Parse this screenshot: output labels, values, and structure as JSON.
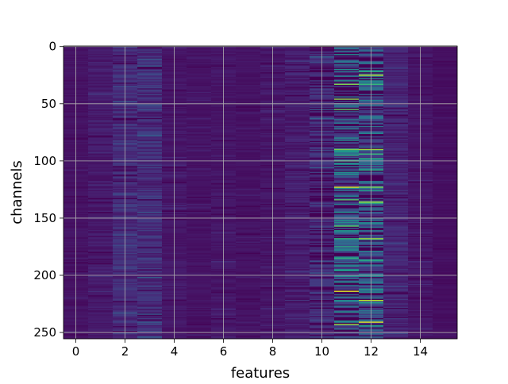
{
  "chart_data": {
    "type": "heatmap",
    "title": "",
    "xlabel": "features",
    "ylabel": "channels",
    "xlim": [
      -0.5,
      15.5
    ],
    "ylim": [
      255.5,
      -0.5
    ],
    "y_inverted": true,
    "n_features": 16,
    "n_channels": 256,
    "xticks": [
      0,
      2,
      4,
      6,
      8,
      10,
      12,
      14
    ],
    "yticks": [
      0,
      50,
      100,
      150,
      200,
      250
    ],
    "grid": true,
    "colormap": "viridis",
    "value_range": [
      0,
      1
    ],
    "background_value": 0.04,
    "feature_column_means": [
      0.05,
      0.07,
      0.12,
      0.13,
      0.06,
      0.05,
      0.06,
      0.05,
      0.06,
      0.08,
      0.12,
      0.3,
      0.28,
      0.1,
      0.06,
      0.04
    ],
    "feature_column_variability": [
      0.03,
      0.05,
      0.1,
      0.12,
      0.04,
      0.03,
      0.04,
      0.03,
      0.04,
      0.06,
      0.12,
      0.35,
      0.3,
      0.08,
      0.04,
      0.02
    ],
    "highlighted_cells": [
      {
        "feature": 11,
        "channel": 55,
        "value": 0.75
      },
      {
        "feature": 11,
        "channel": 90,
        "value": 0.8
      },
      {
        "feature": 11,
        "channel": 92,
        "value": 0.55
      },
      {
        "feature": 11,
        "channel": 123,
        "value": 0.95
      },
      {
        "feature": 11,
        "channel": 145,
        "value": 0.5
      },
      {
        "feature": 11,
        "channel": 175,
        "value": 0.6
      },
      {
        "feature": 11,
        "channel": 192,
        "value": 0.5
      },
      {
        "feature": 11,
        "channel": 214,
        "value": 0.95
      },
      {
        "feature": 12,
        "channel": 25,
        "value": 0.9
      },
      {
        "feature": 12,
        "channel": 90,
        "value": 0.85
      },
      {
        "feature": 12,
        "channel": 98,
        "value": 0.6
      },
      {
        "feature": 12,
        "channel": 108,
        "value": 0.6
      },
      {
        "feature": 12,
        "channel": 123,
        "value": 0.8
      },
      {
        "feature": 12,
        "channel": 136,
        "value": 0.85
      },
      {
        "feature": 12,
        "channel": 168,
        "value": 0.85
      },
      {
        "feature": 12,
        "channel": 187,
        "value": 0.6
      },
      {
        "feature": 12,
        "channel": 222,
        "value": 0.9
      },
      {
        "feature": 12,
        "channel": 241,
        "value": 0.95
      }
    ]
  }
}
